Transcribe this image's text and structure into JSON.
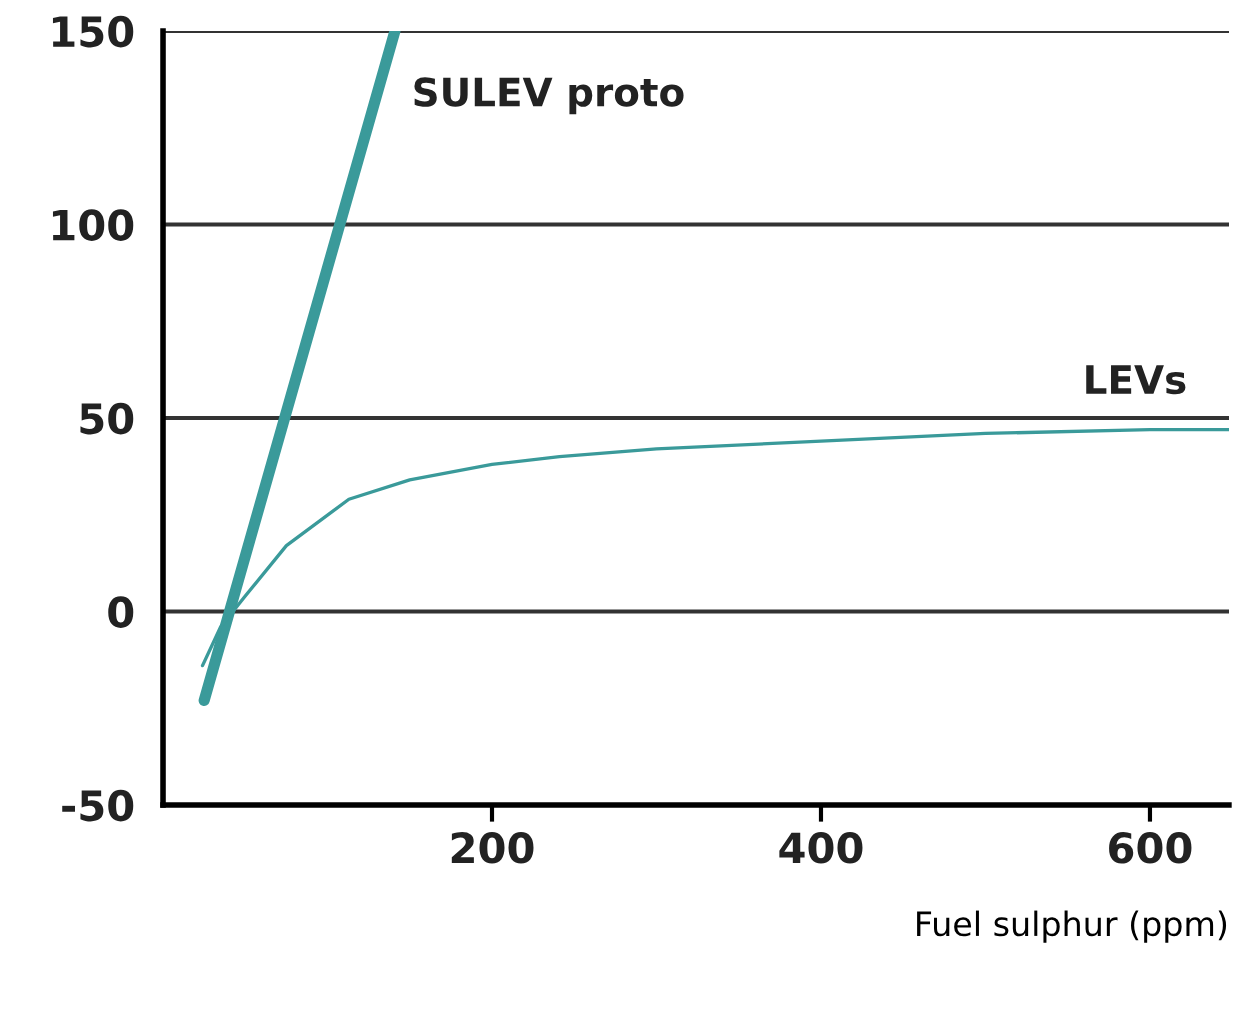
{
  "chart_data": {
    "type": "line",
    "xlabel": "Fuel sulphur (ppm)",
    "xlim": [
      0,
      648
    ],
    "xticks": [
      200,
      400,
      600
    ],
    "ylim": [
      -50,
      150
    ],
    "yticks": [
      -50,
      0,
      50,
      100,
      150
    ],
    "grid": "y",
    "legend": false,
    "series": [
      {
        "name": "SULEV proto",
        "color": "#3a9a9a",
        "x": [
          25,
          141
        ],
        "values": [
          -23,
          150
        ]
      },
      {
        "name": "LEVs",
        "color": "#3a9a9a",
        "x": [
          24,
          35,
          50,
          75,
          113,
          150,
          200,
          241,
          300,
          400,
          500,
          600,
          648
        ],
        "values": [
          -14,
          -4,
          4,
          17,
          29,
          34,
          38,
          40,
          42,
          44,
          46,
          47,
          47
        ]
      }
    ]
  }
}
